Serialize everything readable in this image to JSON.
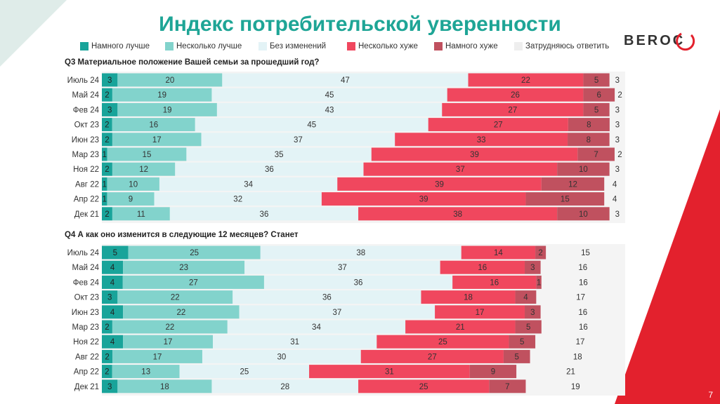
{
  "title": "Индекс потребительской уверенности",
  "logo_text": "BEROC",
  "page_number": "7",
  "colors": {
    "much_better": "#19a49a",
    "somewhat_better": "#82d3cc",
    "no_change": "#e3f3f6",
    "somewhat_worse": "#f0475e",
    "much_worse": "#c0515f",
    "dont_know": "#eeeeee",
    "accent_red": "#e3212d",
    "title_teal": "#1ea596"
  },
  "legend": [
    {
      "label": "Намного лучше",
      "color": "#19a49a"
    },
    {
      "label": "Несколько лучше",
      "color": "#82d3cc"
    },
    {
      "label": "Без изменений",
      "color": "#e3f3f6"
    },
    {
      "label": "Несколько хуже",
      "color": "#f0475e"
    },
    {
      "label": "Намного хуже",
      "color": "#c0515f"
    },
    {
      "label": "Затрудняюсь ответить",
      "color": "#eeeeee"
    }
  ],
  "chart_data": [
    {
      "type": "bar",
      "stacked": true,
      "orientation": "horizontal",
      "title": "Q3 Материальное положение Вашей семьи за прошедший год?",
      "categories": [
        "Июль 24",
        "Май 24",
        "Фев 24",
        "Окт 23",
        "Июн 23",
        "Мар 23",
        "Ноя 22",
        "Авг 22",
        "Апр 22",
        "Дек 21"
      ],
      "series": [
        {
          "name": "Намного лучше",
          "values": [
            3,
            2,
            3,
            2,
            2,
            1,
            2,
            1,
            1,
            2
          ]
        },
        {
          "name": "Несколько лучше",
          "values": [
            20,
            19,
            19,
            16,
            17,
            15,
            12,
            10,
            9,
            11
          ]
        },
        {
          "name": "Без изменений",
          "values": [
            47,
            45,
            43,
            45,
            37,
            35,
            36,
            34,
            32,
            36
          ]
        },
        {
          "name": "Несколько хуже",
          "values": [
            22,
            26,
            27,
            27,
            33,
            39,
            37,
            39,
            39,
            38
          ]
        },
        {
          "name": "Намного хуже",
          "values": [
            5,
            6,
            5,
            8,
            8,
            7,
            10,
            12,
            15,
            10
          ]
        },
        {
          "name": "Затрудняюсь ответить",
          "values": [
            3,
            2,
            3,
            3,
            3,
            2,
            3,
            4,
            4,
            3
          ]
        }
      ],
      "xlim": [
        0,
        100
      ]
    },
    {
      "type": "bar",
      "stacked": true,
      "orientation": "horizontal",
      "title": "Q4 А как оно изменится в следующие 12 месяцев? Станет",
      "categories": [
        "Июль 24",
        "Май 24",
        "Фев 24",
        "Окт 23",
        "Июн 23",
        "Мар 23",
        "Ноя 22",
        "Авг 22",
        "Апр 22",
        "Дек 21"
      ],
      "series": [
        {
          "name": "Намного лучше",
          "values": [
            5,
            4,
            4,
            3,
            4,
            2,
            4,
            2,
            2,
            3
          ]
        },
        {
          "name": "Несколько лучше",
          "values": [
            25,
            23,
            27,
            22,
            22,
            22,
            17,
            17,
            13,
            18
          ]
        },
        {
          "name": "Без изменений",
          "values": [
            38,
            37,
            36,
            36,
            37,
            34,
            31,
            30,
            25,
            28
          ]
        },
        {
          "name": "Несколько хуже",
          "values": [
            14,
            16,
            16,
            18,
            17,
            21,
            25,
            27,
            31,
            25
          ]
        },
        {
          "name": "Намного хуже",
          "values": [
            2,
            3,
            1,
            4,
            3,
            5,
            5,
            5,
            9,
            7
          ]
        },
        {
          "name": "Затрудняюсь ответить",
          "values": [
            15,
            16,
            16,
            17,
            16,
            16,
            17,
            18,
            21,
            19
          ]
        }
      ],
      "xlim": [
        0,
        100
      ]
    }
  ]
}
